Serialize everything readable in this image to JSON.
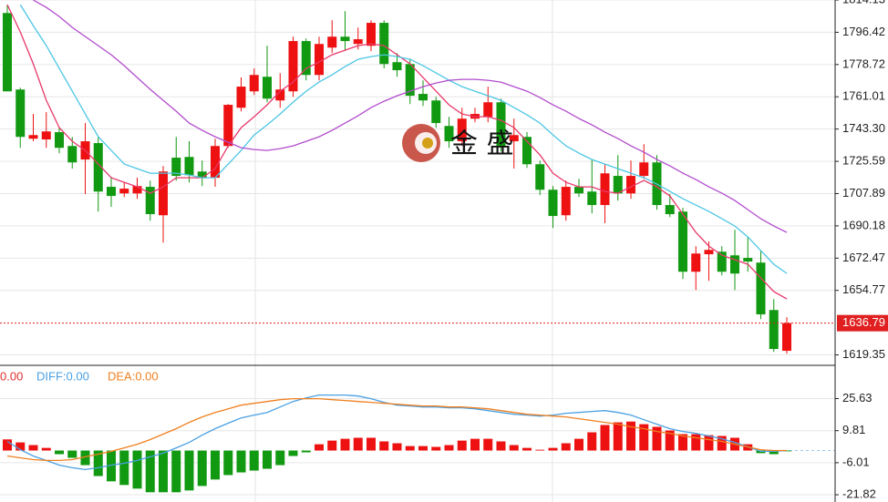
{
  "chart_data": [
    {
      "type": "candlestick",
      "up_color": "#ee1111",
      "down_color": "#119911",
      "open": [
        1807,
        1765,
        1738,
        1737.6,
        1741.6,
        1734,
        1726.6,
        1735.6,
        1711.6,
        1708,
        1708,
        1711.6,
        1696,
        1727.6,
        1728,
        1720,
        1716.6,
        1734,
        1755,
        1764,
        1772,
        1759,
        1764,
        1791.6,
        1773,
        1788,
        1794,
        1790,
        1789,
        1801.6,
        1780,
        1779,
        1762.6,
        1759,
        1745,
        1736.6,
        1749,
        1750,
        1758,
        1736.6,
        1739,
        1724,
        1710,
        1696,
        1711.6,
        1709,
        1701.6,
        1717.6,
        1708,
        1717.6,
        1725,
        1701.6,
        1698,
        1665,
        1674.6,
        1676,
        1674,
        1672.6,
        1670,
        1644,
        1621.6
      ],
      "high": [
        1811.6,
        1766,
        1751.6,
        1752.6,
        1744,
        1739,
        1746.6,
        1739,
        1717,
        1714,
        1716.6,
        1715,
        1723,
        1739,
        1736.6,
        1726,
        1738,
        1757,
        1771.6,
        1776.6,
        1789,
        1774,
        1794,
        1793,
        1794,
        1803,
        1808,
        1799,
        1803,
        1803,
        1785,
        1782,
        1770,
        1761,
        1750,
        1755,
        1755,
        1766.6,
        1760,
        1749,
        1741.6,
        1726,
        1712,
        1715,
        1716,
        1726.6,
        1724,
        1729,
        1726,
        1735,
        1729,
        1707.6,
        1700,
        1679,
        1681.6,
        1679,
        1688,
        1684,
        1676.6,
        1650,
        1640
      ],
      "low": [
        1764,
        1733,
        1736.6,
        1733,
        1730,
        1721.6,
        1707.6,
        1698,
        1700.6,
        1706,
        1705,
        1693,
        1681,
        1715,
        1714,
        1712,
        1711.6,
        1733,
        1753,
        1762,
        1758,
        1755,
        1761,
        1770,
        1770,
        1785,
        1786.6,
        1787,
        1786,
        1776.6,
        1772,
        1757,
        1756,
        1744,
        1733,
        1734,
        1747,
        1747,
        1731,
        1721.6,
        1722,
        1707,
        1689,
        1693,
        1706,
        1697,
        1691.6,
        1704,
        1705,
        1716,
        1699,
        1695,
        1661,
        1655,
        1660,
        1663,
        1655,
        1665,
        1639,
        1621,
        1620
      ],
      "close": [
        1764,
        1739,
        1740,
        1742,
        1733,
        1725,
        1736.6,
        1709,
        1706.6,
        1710.6,
        1712,
        1696.6,
        1720,
        1717.6,
        1718,
        1716.6,
        1734,
        1756.6,
        1766.6,
        1773,
        1760,
        1765,
        1791.6,
        1773,
        1790,
        1794,
        1791.6,
        1792.6,
        1801.6,
        1779,
        1775.6,
        1761.6,
        1759,
        1746.6,
        1736.6,
        1749,
        1751.6,
        1758,
        1734,
        1740,
        1724,
        1710,
        1695.6,
        1711.6,
        1708,
        1701.6,
        1719,
        1708,
        1717.6,
        1725,
        1701.6,
        1696.6,
        1665,
        1675,
        1677,
        1665,
        1664,
        1670.6,
        1641.6,
        1622.6,
        1636.79
      ],
      "series": [
        {
          "color": "#e8386a",
          "values": [
            1811.6,
            1796.6,
            1779.1,
            1759.1,
            1744.1,
            1736.6,
            1731.6,
            1724.1,
            1716.6,
            1714.1,
            1711.6,
            1708.1,
            1711.6,
            1716.6,
            1716.6,
            1716.6,
            1721.6,
            1734.1,
            1744.1,
            1750.1,
            1756.6,
            1764.1,
            1769.1,
            1776.6,
            1780.1,
            1784.1,
            1786.6,
            1789.1,
            1790.1,
            1789.1,
            1784.1,
            1779.1,
            1771.6,
            1764.1,
            1756.6,
            1751.6,
            1750.1,
            1750.1,
            1748.1,
            1744.1,
            1736.6,
            1729.1,
            1719.1,
            1714.1,
            1711.6,
            1711.6,
            1709.1,
            1708.1,
            1711.6,
            1715.1,
            1711.6,
            1706.6,
            1696.6,
            1686.6,
            1679.1,
            1674.1,
            1671.6,
            1669.1,
            1661.6,
            1654.1,
            1650.1
          ]
        },
        {
          "color": "#4cc6e4",
          "values": [
            null,
            1811.6,
            1800.1,
            1789.1,
            1776.6,
            1764.1,
            1751.6,
            1739.1,
            1731.6,
            1724.1,
            1721.6,
            1719.1,
            1719.1,
            1719.1,
            1718.1,
            1716.6,
            1716.6,
            1724.1,
            1731.6,
            1740.1,
            1745.6,
            1751.6,
            1758.1,
            1764.1,
            1769.1,
            1773.1,
            1777.6,
            1781.6,
            1783.1,
            1784.1,
            1783.1,
            1781.6,
            1778.1,
            1774.1,
            1770.1,
            1766.6,
            1764.1,
            1761.6,
            1759.1,
            1755.1,
            1751.1,
            1746.6,
            1740.1,
            1734.1,
            1730.1,
            1726.6,
            1724.1,
            1721.6,
            1719.1,
            1716.6,
            1713.1,
            1709.1,
            1705.1,
            1701.6,
            1698.1,
            1694.1,
            1690.1,
            1684.1,
            1676.6,
            1669.1,
            1664.1
          ]
        },
        {
          "color": "#b24ccc",
          "values": [
            null,
            null,
            1814.1,
            1810.1,
            1805.1,
            1799.1,
            1794.1,
            1789.1,
            1784.1,
            1778.1,
            1771.6,
            1765.1,
            1759.1,
            1753.1,
            1746.6,
            1742.6,
            1739.1,
            1736.1,
            1733.1,
            1732.1,
            1731.6,
            1732.6,
            1734.1,
            1736.6,
            1739.1,
            1742.6,
            1746.6,
            1750.6,
            1755.1,
            1758.6,
            1761.6,
            1764.1,
            1766.6,
            1768.6,
            1770.1,
            1770.6,
            1770.6,
            1770.1,
            1769.1,
            1766.6,
            1764.1,
            1760.6,
            1756.6,
            1753.1,
            1749.1,
            1745.6,
            1741.6,
            1738.1,
            1734.1,
            1730.6,
            1726.6,
            1723.1,
            1719.1,
            1715.6,
            1711.6,
            1708.1,
            1704.1,
            1699.1,
            1694.1,
            1690.1,
            1686.6
          ]
        }
      ],
      "ylim": [
        1614.13,
        1814.13
      ],
      "yticks": [
        1814.13,
        1796.42,
        1778.72,
        1761.01,
        {
          "value": 1743.3,
          "label": "1743.30"
        },
        1725.59,
        1707.89,
        1690.18,
        1672.47,
        1654.77,
        1619.35
      ],
      "last_price": 1636.79,
      "grid": true,
      "watermark": "金 盛"
    },
    {
      "type": "macd",
      "legend_texts": [
        "0.00",
        "DIFF:0.00",
        "DEA:0.00"
      ],
      "up_color": "#ee1111",
      "down_color": "#119911",
      "histogram": [
        5.5,
        4,
        2.7,
        1.3,
        -1.8,
        -3.6,
        -7.2,
        -12.6,
        -15.2,
        -17,
        -18.8,
        -20.6,
        -20.6,
        -20.6,
        -19.7,
        -17.5,
        -14.3,
        -12.1,
        -10.8,
        -9.9,
        -9,
        -7.2,
        -2.7,
        -0.9,
        3.1,
        4.9,
        5.8,
        6.3,
        6.3,
        4.5,
        3.6,
        2.2,
        2.2,
        1.8,
        2.7,
        4.9,
        5.8,
        5.8,
        4.5,
        2.7,
        1.3,
        0.4,
        1.3,
        3.6,
        5.8,
        9,
        12.6,
        13.9,
        14.3,
        13,
        11.7,
        9.9,
        8.1,
        8.1,
        7.6,
        7.2,
        6.3,
        3.1,
        -1.3,
        -1.8,
        -0.4
      ],
      "series": [
        {
          "color": "#4aa0e2",
          "values": [
            4.5,
            0.4,
            -2.7,
            -4.9,
            -7.2,
            -8.5,
            -9.4,
            -8.5,
            -7.2,
            -6.3,
            -4.9,
            -3.1,
            -1.3,
            1.3,
            4,
            7.6,
            10.8,
            13.5,
            16.1,
            17.5,
            18.8,
            21.5,
            24.2,
            26,
            27.4,
            27.4,
            27.4,
            26.9,
            25.6,
            23.8,
            22.4,
            22,
            21.5,
            21.5,
            21.1,
            21.1,
            20.6,
            19.7,
            18.8,
            17.9,
            17.5,
            17,
            17.5,
            18.4,
            18.8,
            19.3,
            19.7,
            18.8,
            17.5,
            15.2,
            13,
            10.8,
            9.4,
            8.5,
            7.2,
            5.8,
            4,
            1.8,
            -0.4,
            -0.4,
            0
          ]
        },
        {
          "color": "#f08020",
          "values": [
            -2.7,
            -3.6,
            -4.5,
            -4.9,
            -4.9,
            -4.5,
            -3.1,
            -1.8,
            -0.4,
            1.3,
            3.1,
            5.4,
            8.1,
            10.8,
            13.9,
            16.6,
            18.8,
            20.6,
            22.4,
            23.3,
            24.2,
            25.1,
            25.6,
            25.6,
            25.6,
            25.1,
            24.7,
            24.2,
            23.8,
            23.3,
            22.9,
            22.4,
            22,
            22,
            21.5,
            21.5,
            21.1,
            20.6,
            19.7,
            18.8,
            17.9,
            17.5,
            17,
            16.6,
            15.7,
            14.8,
            13.9,
            13,
            11.7,
            10.8,
            9.4,
            8.5,
            7.2,
            6.3,
            5.4,
            4.5,
            3.1,
            1.8,
            0.4,
            0,
            0
          ]
        }
      ],
      "ylim": [
        -25.4,
        41.6
      ],
      "yticks": [
        25.63,
        9.81,
        -6.01,
        -21.82
      ]
    }
  ]
}
